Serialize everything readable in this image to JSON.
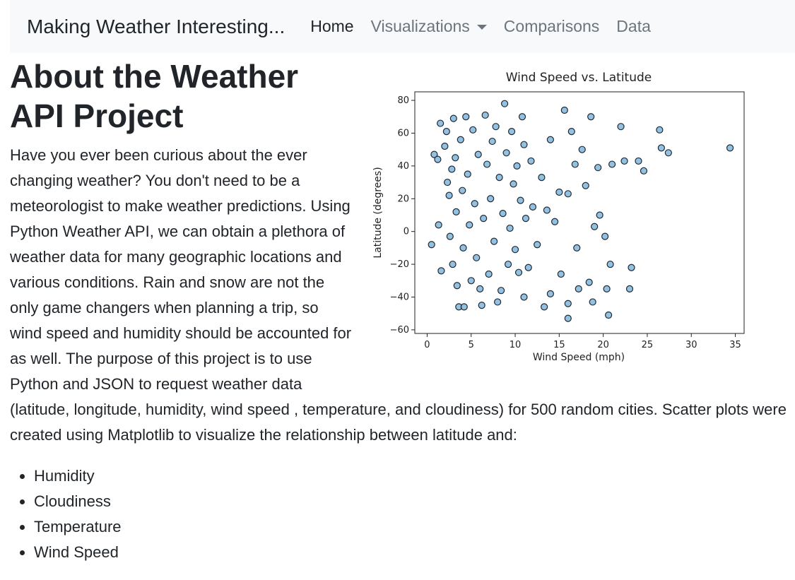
{
  "navbar": {
    "brand": "Making Weather Interesting...",
    "links": [
      "Home",
      "Visualizations",
      "Comparisons",
      "Data"
    ]
  },
  "article": {
    "heading": "About the Weather API Project",
    "paragraph": "Have you ever been curious about the ever changing weather? You don't need to be a meteorologist to make weather predictions. Using Python Weather API, we can obtain a plethora of weather data for many geographic locations and various conditions. Rain and snow are not the only game changers when planning a trip, so wind speed and humidity should be accounted for as well. The purpose of this project is to use Python and JSON to request weather data (latitude, longitude, humidity, wind speed , temperature, and cloudiness) for 500 random cities. Scatter plots were created using Matplotlib to visualize the relationship between latitude and:",
    "list": [
      "Humidity",
      "Cloudiness",
      "Temperature",
      "Wind Speed"
    ]
  },
  "chart_data": {
    "type": "scatter",
    "title": "Wind Speed vs. Latitude",
    "x_label": "Wind Speed (mph)",
    "y_label": "Latitude (degrees)",
    "color": "#82b6dc",
    "edge_color": "#1c2a36",
    "x": [
      0.5,
      0.8,
      1.2,
      1.5,
      1.3,
      1.6,
      2,
      2.2,
      2.3,
      2.5,
      2.6,
      2.8,
      2.9,
      3,
      3.2,
      3.3,
      3.4,
      3.6,
      3.8,
      4,
      4.1,
      4.2,
      4.4,
      4.6,
      4.8,
      5,
      5.2,
      5.4,
      5.6,
      5.8,
      6,
      6.2,
      6.4,
      6.6,
      6.8,
      7,
      7.2,
      7.4,
      7.6,
      7.8,
      8,
      8.2,
      8.4,
      8.6,
      8.8,
      9,
      9.2,
      9.4,
      9.6,
      9.8,
      10,
      10.2,
      10.4,
      10.6,
      10.8,
      11,
      11,
      11.2,
      11.5,
      11.8,
      12,
      12.5,
      13,
      13.3,
      13.6,
      14,
      14,
      14.5,
      15,
      15.2,
      15.6,
      16,
      16,
      16,
      16.4,
      16.8,
      17,
      17.2,
      17.6,
      18,
      18.4,
      18.6,
      18.8,
      19,
      19.4,
      19.6,
      20.2,
      20.4,
      20.6,
      20.8,
      21,
      22,
      22.4,
      23.2,
      23,
      24,
      24.6,
      26.4,
      26.6,
      27.4,
      34.4
    ],
    "values": [
      -8,
      47,
      44,
      66,
      4,
      -24,
      52,
      61,
      30,
      22,
      -3,
      38,
      -20,
      69,
      45,
      12,
      -33,
      -46,
      56,
      25,
      -10,
      -46,
      70,
      35,
      4,
      -30,
      62,
      17,
      -16,
      47,
      -35,
      -45,
      8,
      71,
      41,
      -26,
      20,
      55,
      -6,
      64,
      -43,
      33,
      -36,
      11,
      78,
      48,
      -20,
      2,
      61,
      29,
      -11,
      40,
      -25,
      19,
      70,
      -40,
      53,
      8,
      -22,
      43,
      15,
      -8,
      33,
      -46,
      13,
      56,
      -38,
      6,
      24,
      -26,
      74,
      -53,
      -44,
      23,
      61,
      41,
      -10,
      -35,
      50,
      28,
      -31,
      70,
      -43,
      3,
      39,
      10,
      -3,
      -35,
      -51,
      -20,
      41,
      64,
      43,
      -22,
      -35,
      43,
      37,
      62,
      51,
      48,
      51
    ],
    "xlim": [
      -1.4,
      36
    ],
    "ylim": [
      -62.2,
      85.2
    ],
    "xticks": [
      0,
      5,
      10,
      15,
      20,
      25,
      30,
      35
    ],
    "yticks": [
      {
        "value": -60,
        "label": "−60"
      },
      {
        "value": -40,
        "label": "−40"
      },
      {
        "value": -20,
        "label": "−20"
      },
      0,
      20,
      40,
      60,
      80
    ]
  }
}
